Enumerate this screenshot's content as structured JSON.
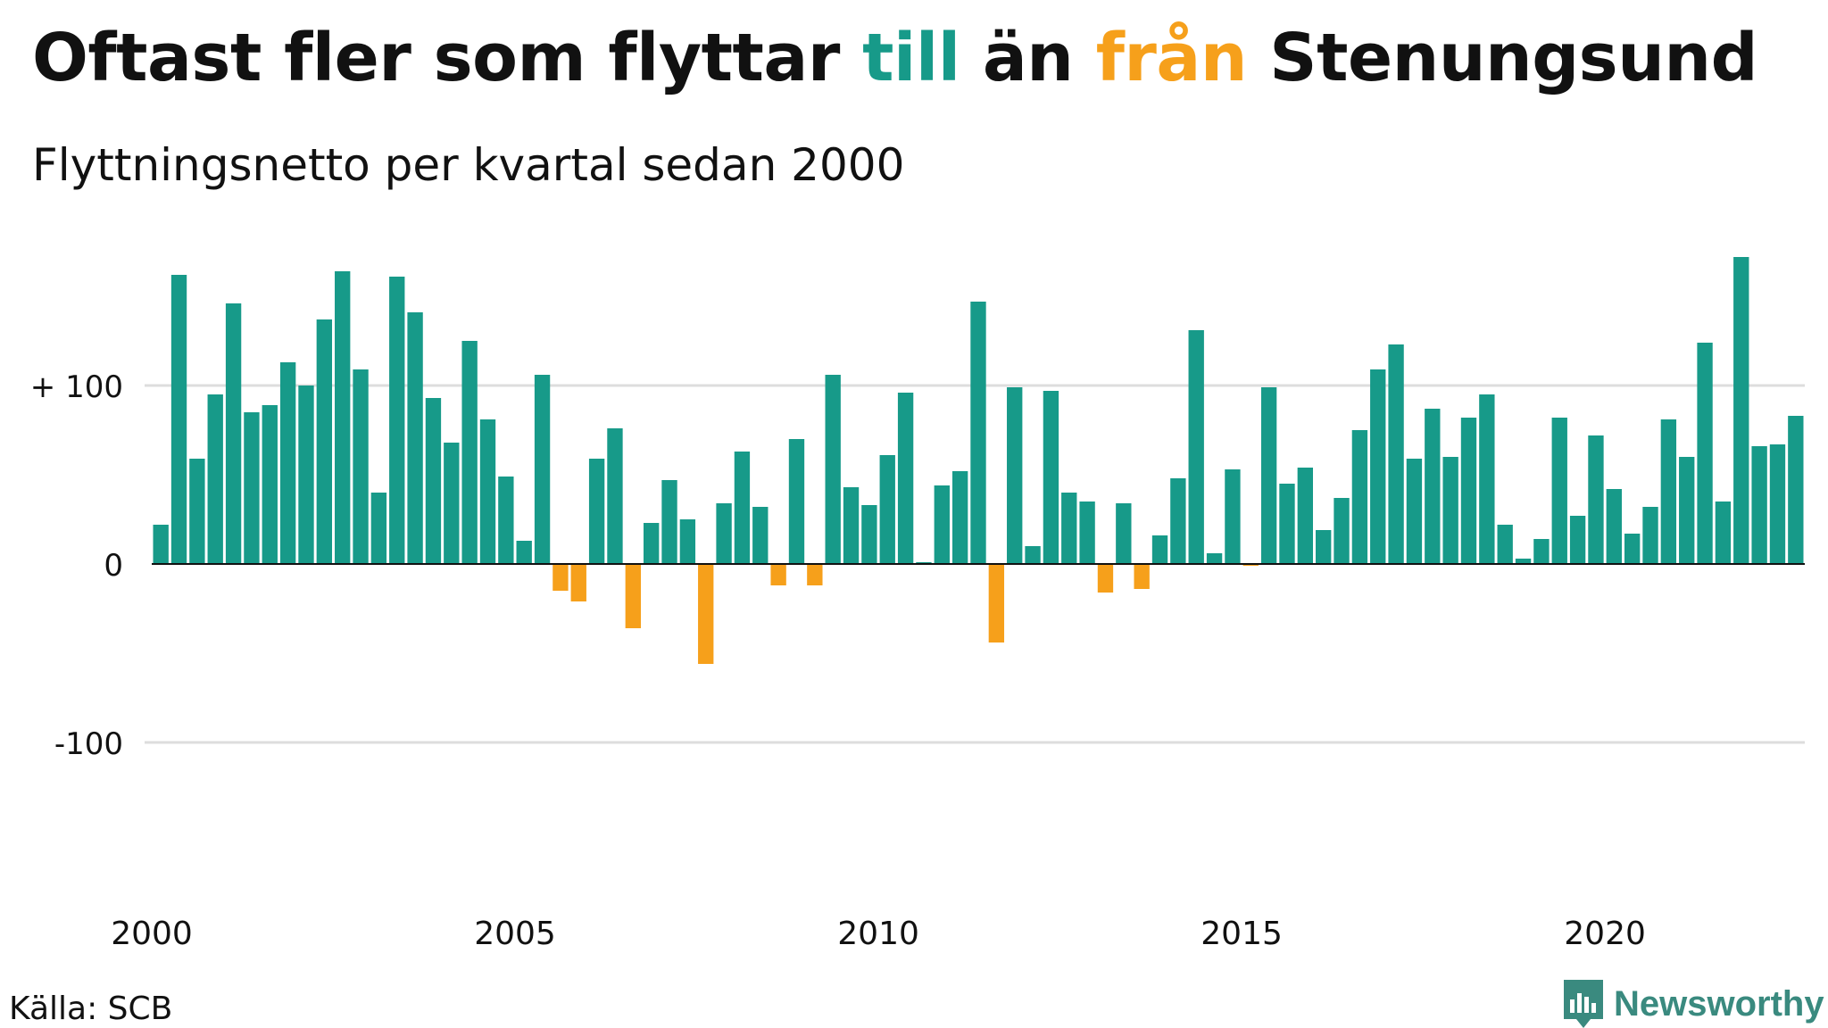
{
  "title": {
    "part1": "Oftast fler som flyttar ",
    "highlight_to": "till",
    "part2": " än ",
    "highlight_from": "från",
    "part3": " Stenungsund"
  },
  "subtitle": "Flyttningsnetto per kvartal sedan 2000",
  "source": "Källa: SCB",
  "brand": {
    "name": "Newsworthy",
    "logo_icon": "newsworthy-bar-chart-logo-icon"
  },
  "colors": {
    "positive": "#179a89",
    "negative": "#f6a01b",
    "brand": "#3a8a7f",
    "grid": "#dddddd"
  },
  "chart_data": {
    "type": "bar",
    "x_start": 2000,
    "periods_per_year": 4,
    "x_ticks": [
      2000,
      2005,
      2010,
      2015,
      2020
    ],
    "y_ticks": [
      {
        "value": 100,
        "label": "+ 100"
      },
      {
        "value": 0,
        "label": "0"
      },
      {
        "value": -100,
        "label": "-100"
      }
    ],
    "ylim": [
      -190,
      178
    ],
    "grid": true,
    "values": [
      22,
      162,
      59,
      95,
      146,
      85,
      89,
      113,
      100,
      137,
      164,
      109,
      40,
      161,
      141,
      93,
      68,
      125,
      81,
      49,
      13,
      106,
      -15,
      -21,
      59,
      76,
      -36,
      23,
      47,
      25,
      -56,
      34,
      63,
      32,
      -12,
      70,
      -12,
      106,
      43,
      33,
      61,
      96,
      1,
      44,
      52,
      147,
      -44,
      99,
      10,
      97,
      40,
      35,
      -16,
      34,
      -14,
      16,
      48,
      131,
      6,
      53,
      -1,
      99,
      45,
      54,
      19,
      37,
      75,
      109,
      123,
      59,
      87,
      60,
      82,
      95,
      22,
      3,
      14,
      82,
      27,
      72,
      42,
      17,
      32,
      81,
      60,
      124,
      35,
      172,
      66,
      67,
      83
    ]
  }
}
